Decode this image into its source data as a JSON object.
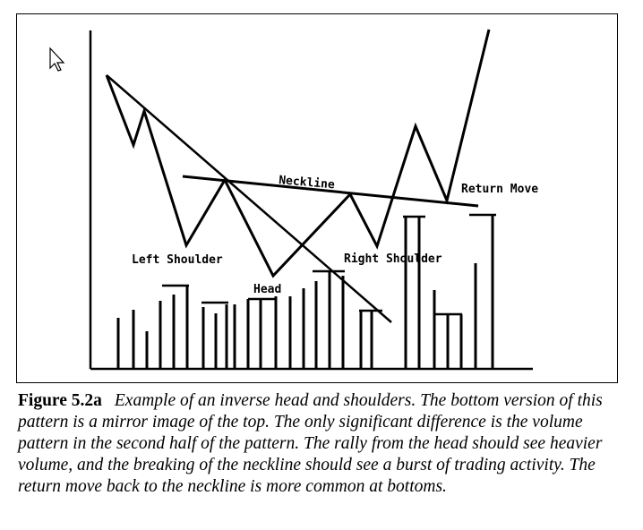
{
  "diagram": {
    "labels": {
      "neckline": "Neckline",
      "left_shoulder": "Left Shoulder",
      "head": "Head",
      "right_shoulder": "Right Shoulder",
      "return_move": "Return Move"
    },
    "icons": {
      "cursor": "mouse-pointer-icon"
    },
    "stroke_color": "#000000"
  },
  "caption": {
    "figure": "Figure 5.2a",
    "text": "Example of an inverse head and shoulders. The bottom version of this pattern is a mirror image of the top. The only significant difference is the volume pattern in the second half of the pattern. The rally from the head should see heavier volume, and the breaking of the neckline should see a burst of trading activity. The return move back to the neckline is more common at bottoms."
  }
}
